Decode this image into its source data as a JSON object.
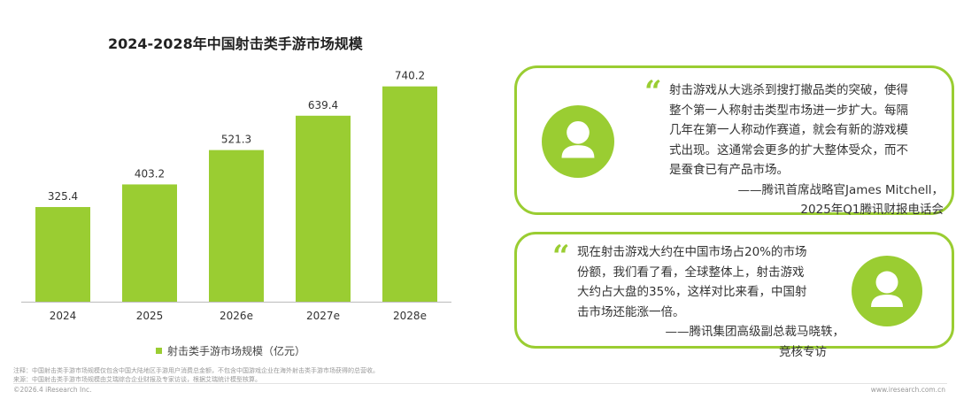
{
  "colors": {
    "accent": "#9acd32",
    "text": "#333333",
    "muted": "#999999"
  },
  "chart_data": {
    "type": "bar",
    "title": "2024-2028年中国射击类手游市场规模",
    "categories": [
      "2024",
      "2025",
      "2026e",
      "2027e",
      "2028e"
    ],
    "series": [
      {
        "name": "射击类手游市场规模（亿元）",
        "values": [
          325.4,
          403.2,
          521.3,
          639.4,
          740.2
        ]
      }
    ],
    "value_labels": [
      "325.4",
      "403.2",
      "521.3",
      "639.4",
      "740.2"
    ],
    "ylim": [
      0,
      800
    ],
    "grid": false,
    "legend_position": "bottom",
    "xlabel": "",
    "ylabel": ""
  },
  "quotes": [
    {
      "icon": "user-avatar-icon",
      "mark": "“",
      "lines": [
        "射击游戏从大逃杀到搜打撤品类的突破，使得",
        "整个第一人称射击类型市场进一步扩大。每隔",
        "几年在第一人称动作赛道，就会有新的游戏模",
        "式出现。这通常会更多的扩大整体受众，而不",
        "是蚕食已有产品市场。"
      ],
      "attribution": [
        "——腾讯首席战略官James Mitchell，",
        "2025年Q1腾讯财报电话会"
      ]
    },
    {
      "icon": "user-avatar-icon",
      "mark": "“",
      "lines": [
        "现在射击游戏大约在中国市场占20%的市场",
        "份额，我们看了看，全球整体上，射击游戏",
        "大约占大盘的35%，这样对比来看，中国射",
        "击市场还能涨一倍。"
      ],
      "attribution": [
        "——腾讯集团高级副总裁马晓轶，",
        "竞核专访"
      ]
    }
  ],
  "footer": {
    "note1": "注释：中国射击类手游市场规模仅包含中国大陆地区手游用户消费总金额，不包含中国游戏企业在海外射击类手游市场获得的总营收。",
    "note2": "来源：中国射击类手游市场规模由艾瑞综合企业财报及专家访谈，根据艾瑞统计模型核算。",
    "copyright": "©2026.4 iResearch Inc.",
    "website": "www.iresearch.com.cn"
  }
}
